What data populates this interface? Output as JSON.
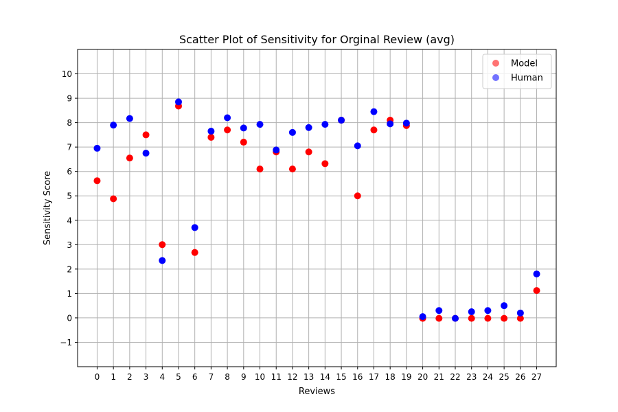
{
  "chart_data": {
    "type": "scatter",
    "title": "Scatter Plot of Sensitivity for Orginal Review (avg)",
    "xlabel": "Reviews",
    "ylabel": "Sensitivity Score",
    "x": [
      0,
      1,
      2,
      3,
      4,
      5,
      6,
      7,
      8,
      9,
      10,
      11,
      12,
      13,
      14,
      15,
      16,
      17,
      18,
      19,
      20,
      21,
      22,
      23,
      24,
      25,
      26,
      27
    ],
    "x_tick_labels": [
      "0",
      "1",
      "2",
      "3",
      "4",
      "5",
      "6",
      "7",
      "8",
      "9",
      "10",
      "11",
      "12",
      "13",
      "14",
      "15",
      "16",
      "17",
      "18",
      "19",
      "20",
      "21",
      "22",
      "23",
      "24",
      "25",
      "26",
      "27"
    ],
    "xlim": [
      -1.2,
      28.2
    ],
    "ylim": [
      -2,
      11
    ],
    "y_ticks": [
      -1,
      0,
      1,
      2,
      3,
      4,
      5,
      6,
      7,
      8,
      9,
      10
    ],
    "y_tick_labels": [
      "−1",
      "0",
      "1",
      "2",
      "3",
      "4",
      "5",
      "6",
      "7",
      "8",
      "9",
      "10"
    ],
    "grid": true,
    "legend_position": "top-right",
    "series": [
      {
        "name": "Model",
        "color": "#ff0000",
        "values": [
          5.62,
          4.88,
          6.55,
          7.5,
          3.0,
          8.68,
          2.68,
          7.4,
          7.7,
          7.2,
          6.1,
          6.8,
          6.1,
          6.8,
          6.32,
          8.1,
          5.0,
          7.7,
          8.1,
          7.88,
          -0.02,
          -0.02,
          -0.02,
          -0.02,
          -0.02,
          -0.02,
          -0.02,
          1.12
        ]
      },
      {
        "name": "Human",
        "color": "#0000ff",
        "values": [
          6.95,
          7.9,
          8.17,
          6.75,
          2.35,
          8.85,
          3.7,
          7.65,
          8.2,
          7.78,
          7.93,
          6.88,
          7.6,
          7.8,
          7.93,
          8.1,
          7.05,
          8.45,
          7.95,
          7.98,
          0.05,
          0.3,
          -0.02,
          0.25,
          0.3,
          0.5,
          0.2,
          1.8
        ]
      }
    ]
  }
}
